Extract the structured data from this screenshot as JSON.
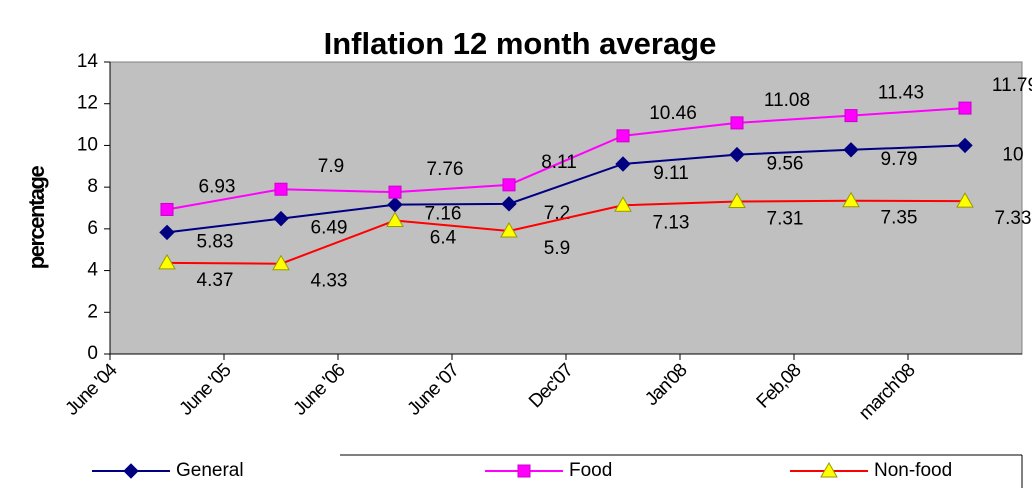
{
  "chart_data": {
    "type": "line",
    "title": "Inflation 12 month average",
    "y_label": "percentage",
    "categories": [
      "June '04",
      "June '05",
      "June '06",
      "June '07",
      "Dec'07",
      "Jan'08",
      "Feb,08",
      "march'08"
    ],
    "series": [
      {
        "name": "General",
        "color": "#000080",
        "marker": "diamond",
        "marker_color": "#000080",
        "values": [
          5.83,
          6.49,
          7.16,
          7.2,
          9.11,
          9.56,
          9.79,
          10
        ]
      },
      {
        "name": "Food",
        "color": "#ff00ff",
        "marker": "square",
        "marker_color": "#ff00ff",
        "values": [
          6.93,
          7.9,
          7.76,
          8.11,
          10.46,
          11.08,
          11.43,
          11.79
        ]
      },
      {
        "name": "Non-food",
        "color": "#ff0000",
        "marker": "triangle",
        "marker_color": "#ffff00",
        "values": [
          4.37,
          4.33,
          6.4,
          5.9,
          7.13,
          7.31,
          7.35,
          7.33
        ]
      }
    ],
    "ylim": [
      0,
      14
    ],
    "yticks": [
      0,
      2,
      4,
      6,
      8,
      10,
      12,
      14
    ],
    "grid": false,
    "legend": "bottom"
  }
}
